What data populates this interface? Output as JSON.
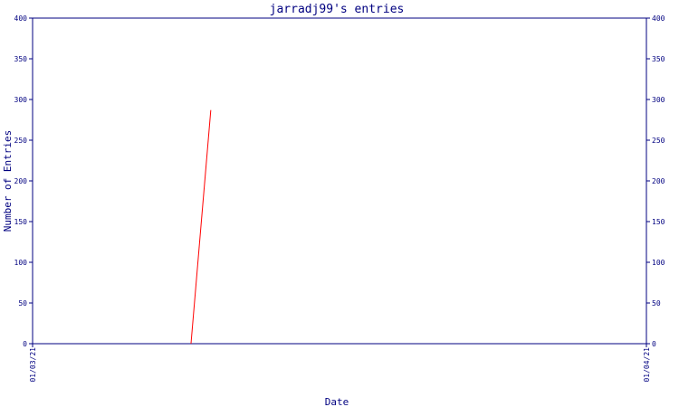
{
  "chart_data": {
    "type": "line",
    "title": "jarradj99's entries",
    "xlabel": "Date",
    "ylabel": "Number of Entries",
    "x_tick_labels": [
      "01/03/21",
      "01/04/21"
    ],
    "y_ticks": [
      0,
      50,
      100,
      150,
      200,
      250,
      300,
      350,
      400
    ],
    "ylim": [
      0,
      400
    ],
    "xlim": [
      "2021-03-01",
      "2021-04-01"
    ],
    "grid": false,
    "axes_color": "#000080",
    "series": [
      {
        "color": "#ff0000",
        "points": [
          {
            "x": "2021-03-09",
            "y": 0
          },
          {
            "x": "2021-03-10",
            "y": 287
          }
        ]
      }
    ]
  }
}
